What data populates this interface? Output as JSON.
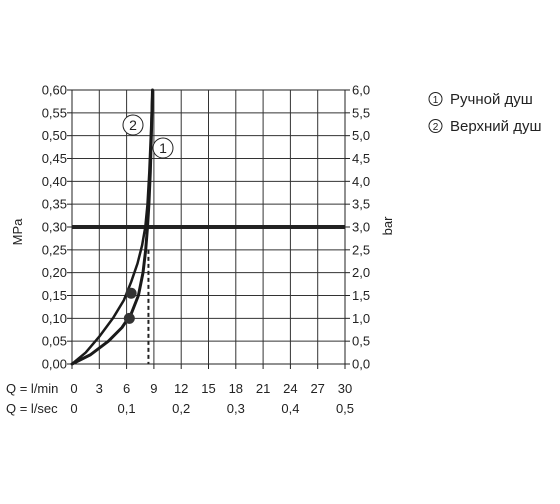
{
  "chart_data": {
    "type": "line",
    "ylabel_left": "MPa",
    "ylabel_right": "bar",
    "x_row1_label": "Q = l/min",
    "x_row2_label": "Q = l/sec",
    "x_ticks_lmin": [
      "0",
      "3",
      "6",
      "9",
      "12",
      "15",
      "18",
      "21",
      "24",
      "27",
      "30"
    ],
    "x_ticks_lsec": [
      "0",
      "0,1",
      "0,2",
      "0,3",
      "0,4",
      "0,5"
    ],
    "y_ticks_mpa": [
      "0,00",
      "0,05",
      "0,10",
      "0,15",
      "0,20",
      "0,25",
      "0,30",
      "0,35",
      "0,40",
      "0,45",
      "0,50",
      "0,55",
      "0,60"
    ],
    "y_ticks_bar": [
      "0,0",
      "0,5",
      "1,0",
      "1,5",
      "2,0",
      "2,5",
      "3,0",
      "3,5",
      "4,0",
      "4,5",
      "5,0",
      "5,5",
      "6,0"
    ],
    "xlim": [
      0,
      30
    ],
    "ylim": [
      0,
      0.6
    ],
    "grid": true,
    "legend_position": "top-right",
    "reference_line_y": 0.3,
    "reference_line_x": 8.4,
    "series": [
      {
        "name": "Ручной душ",
        "marker_label": "1",
        "x": [
          0,
          2,
          4,
          5.5,
          6.5,
          7.3,
          7.8,
          8.1,
          8.3,
          8.45,
          8.6,
          8.75,
          8.85
        ],
        "y": [
          0,
          0.02,
          0.05,
          0.08,
          0.11,
          0.15,
          0.2,
          0.25,
          0.3,
          0.35,
          0.42,
          0.52,
          0.6
        ],
        "operating_point": [
          6.3,
          0.1
        ]
      },
      {
        "name": "Верхний душ",
        "marker_label": "2",
        "x": [
          0,
          1.5,
          3,
          4.5,
          5.7,
          6.5,
          7.2,
          7.7,
          8.05,
          8.3,
          8.5,
          8.7,
          8.85
        ],
        "y": [
          0,
          0.025,
          0.06,
          0.1,
          0.14,
          0.18,
          0.22,
          0.26,
          0.3,
          0.35,
          0.42,
          0.52,
          0.6
        ],
        "operating_point": [
          6.5,
          0.155
        ]
      }
    ]
  }
}
